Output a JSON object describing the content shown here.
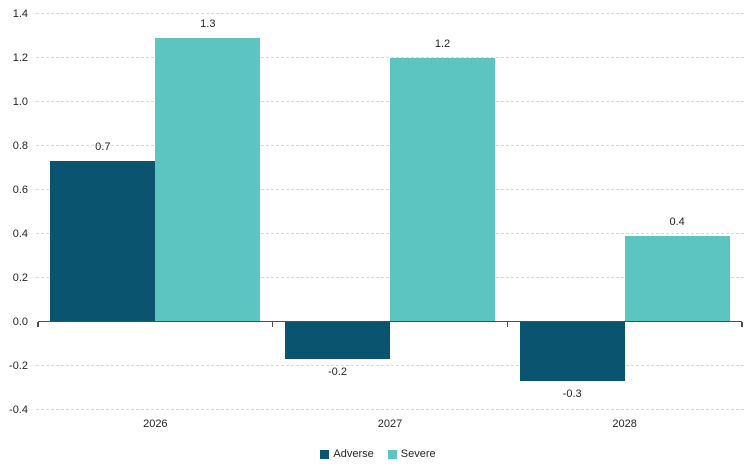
{
  "chart_data": {
    "type": "bar",
    "title": "",
    "xlabel": "",
    "ylabel": "",
    "categories": [
      "2026",
      "2027",
      "2028"
    ],
    "series": [
      {
        "name": "Adverse",
        "color": "#0b5470",
        "values": [
          0.7,
          -0.2,
          -0.3
        ],
        "labels": [
          "0.7",
          "-0.2",
          "-0.3"
        ],
        "plot_values": [
          0.73,
          -0.17,
          -0.27
        ]
      },
      {
        "name": "Severe",
        "color": "#5cc5c2",
        "values": [
          1.3,
          1.2,
          0.4
        ],
        "labels": [
          "1.3",
          "1.2",
          "0.4"
        ],
        "plot_values": [
          1.29,
          1.2,
          0.39
        ]
      }
    ],
    "y_axis": {
      "min": -0.4,
      "max": 1.4,
      "step": 0.2,
      "ticks": [
        "1.4",
        "1.2",
        "1.0",
        "0.8",
        "0.6",
        "0.4",
        "0.2",
        "0.0",
        "-0.2",
        "-0.4"
      ]
    },
    "grid": "horizontal-dashed",
    "legend": {
      "position": "bottom-center",
      "entries": [
        "Adverse",
        "Severe"
      ]
    },
    "colors": {
      "grid": "#d9d9d9",
      "axis": "#4d4d4d",
      "text": "#262626",
      "background": "#ffffff"
    }
  }
}
